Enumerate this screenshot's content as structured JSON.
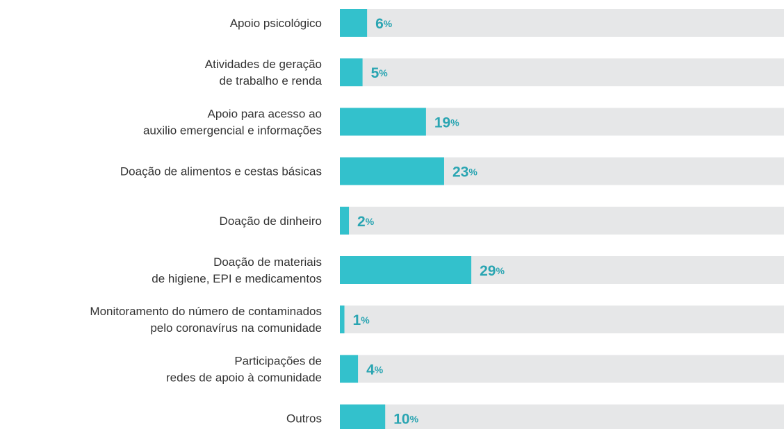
{
  "chart_data": {
    "type": "bar",
    "orientation": "horizontal",
    "categories": [
      "Apoio psicológico",
      "Atividades de geração\nde trabalho e renda",
      "Apoio para acesso ao\nauxilio emergencial e informações",
      "Doação de alimentos e cestas básicas",
      "Doação de dinheiro",
      "Doação de materiais\nde higiene, EPI e medicamentos",
      "Monitoramento do número de contaminados\npelo coronavírus na comunidade",
      "Participações de\nredes de apoio à comunidade",
      "Outros"
    ],
    "values": [
      6,
      5,
      19,
      23,
      2,
      29,
      1,
      4,
      10
    ],
    "value_labels": [
      "6%",
      "5%",
      "19%",
      "23%",
      "2%",
      "29%",
      "1%",
      "4%",
      "10%"
    ],
    "color": "#33c1cc",
    "track_color": "#e6e7e8",
    "label_color": "#2aa5b2",
    "xlim": [
      0,
      98
    ]
  }
}
